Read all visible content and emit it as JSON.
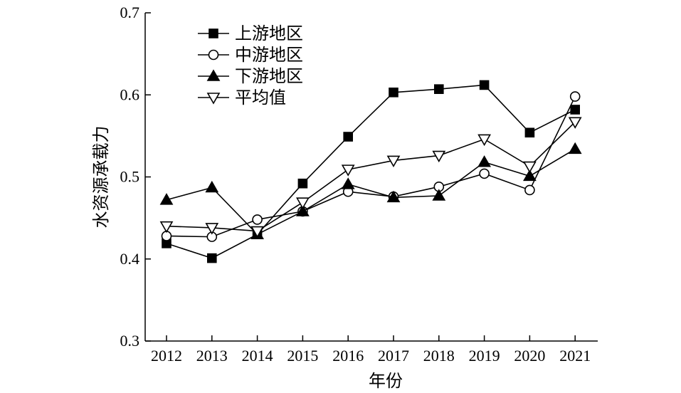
{
  "chart_data": {
    "type": "line",
    "title": "",
    "xlabel": "年份",
    "ylabel": "水资源承载力",
    "categories": [
      "2012",
      "2013",
      "2014",
      "2015",
      "2016",
      "2017",
      "2018",
      "2019",
      "2020",
      "2021"
    ],
    "ylim": [
      0.3,
      0.7
    ],
    "yticks": [
      "0.3",
      "0.4",
      "0.5",
      "0.6",
      "0.7"
    ],
    "grid": false,
    "legend_position": "top-left",
    "series": [
      {
        "name": "上游地区",
        "marker": "square-filled",
        "values": [
          0.419,
          0.401,
          0.43,
          0.492,
          0.549,
          0.603,
          0.607,
          0.612,
          0.554,
          0.582
        ]
      },
      {
        "name": "中游地区",
        "marker": "circle-open",
        "values": [
          0.428,
          0.427,
          0.448,
          0.458,
          0.482,
          0.476,
          0.488,
          0.504,
          0.484,
          0.598
        ]
      },
      {
        "name": "下游地区",
        "marker": "triangle-up-filled",
        "values": [
          0.472,
          0.487,
          0.43,
          0.458,
          0.491,
          0.475,
          0.477,
          0.518,
          0.501,
          0.534
        ]
      },
      {
        "name": "平均值",
        "marker": "triangle-down-open",
        "values": [
          0.44,
          0.438,
          0.434,
          0.469,
          0.509,
          0.52,
          0.526,
          0.546,
          0.513,
          0.567
        ]
      }
    ]
  }
}
